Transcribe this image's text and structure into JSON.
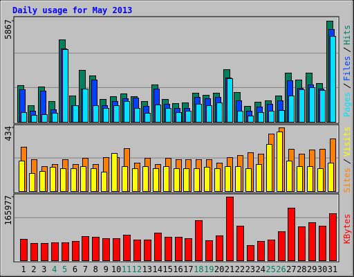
{
  "chart_data": {
    "type": "bar",
    "title": "Daily usage for May 2013",
    "categories": [
      "1",
      "2",
      "3",
      "4",
      "5",
      "6",
      "7",
      "8",
      "9",
      "10",
      "11",
      "12",
      "13",
      "14",
      "15",
      "16",
      "17",
      "18",
      "19",
      "20",
      "21",
      "22",
      "23",
      "24",
      "25",
      "26",
      "27",
      "28",
      "29",
      "30",
      "31"
    ],
    "category_colors": [
      "#000000",
      "#000000",
      "#000000",
      "#00805c",
      "#00805c",
      "#000000",
      "#000000",
      "#000000",
      "#000000",
      "#000000",
      "#00805c",
      "#00805c",
      "#000000",
      "#000000",
      "#000000",
      "#000000",
      "#000000",
      "#00805c",
      "#00805c",
      "#000000",
      "#000000",
      "#000000",
      "#000000",
      "#000000",
      "#00805c",
      "#00805c",
      "#000000",
      "#000000",
      "#000000",
      "#000000",
      "#000000"
    ],
    "panels": [
      {
        "ylim": [
          0,
          5867
        ],
        "yticks": [
          5867
        ],
        "series": [
          {
            "name": "Pages",
            "color": "#00e0ff",
            "values": [
              563,
              402,
              442,
              522,
              4220,
              964,
              1929,
              964,
              804,
              964,
              1206,
              804,
              522,
              1005,
              804,
              563,
              643,
              1045,
              964,
              1125,
              2532,
              643,
              362,
              563,
              643,
              683,
              1527,
              1889,
              2009,
              1849,
              4983
            ]
          },
          {
            "name": "Files",
            "color": "#0040ff",
            "values": [
              1889,
              643,
              1808,
              723,
              4260,
              964,
              1929,
              2451,
              964,
              1206,
              1366,
              1406,
              924,
              1929,
              1045,
              804,
              804,
              1447,
              1366,
              1447,
              2572,
              1246,
              643,
              884,
              1045,
              1246,
              2411,
              1969,
              2170,
              1929,
              5385
            ]
          },
          {
            "name": "Hits",
            "color": "#00805c",
            "values": [
              2130,
              964,
              2049,
              1206,
              4782,
              1527,
              3014,
              2692,
              1326,
              1487,
              1648,
              1487,
              1206,
              2170,
              1326,
              1085,
              1125,
              1688,
              1567,
              1688,
              3054,
              1728,
              924,
              1165,
              1246,
              1527,
              2853,
              2451,
              2853,
              2250,
              5867
            ]
          }
        ]
      },
      {
        "ylim": [
          0,
          434
        ],
        "yticks": [
          434
        ],
        "series": [
          {
            "name": "Sites",
            "color": "#ff8000",
            "values": [
              302,
              217,
              170,
              184,
              217,
              184,
              226,
              184,
              231,
              231,
              292,
              193,
              226,
              184,
              226,
              217,
              217,
              217,
              217,
              193,
              231,
              245,
              264,
              255,
              392,
              434,
              288,
              255,
              283,
              288,
              359
            ]
          },
          {
            "name": "Visits",
            "color": "#ffff00",
            "values": [
              208,
              123,
              137,
              165,
              156,
              156,
              170,
              156,
              132,
              259,
              170,
              156,
              170,
              156,
              170,
              156,
              156,
              156,
              165,
              156,
              170,
              170,
              156,
              184,
              321,
              406,
              208,
              170,
              170,
              156,
              193
            ]
          }
        ]
      },
      {
        "ylim": [
          0,
          165977
        ],
        "yticks": [
          165977
        ],
        "series": [
          {
            "name": "KBytes",
            "color": "#ff0000",
            "values": [
              55927,
              45102,
              45102,
              46907,
              46907,
              50515,
              63144,
              61340,
              57731,
              57731,
              66752,
              54123,
              54123,
              72164,
              61340,
              61340,
              57731,
              104638,
              52319,
              64948,
              165977,
              90205,
              39690,
              50515,
              54123,
              75772,
              137112,
              88401,
              99226,
              90205,
              122678
            ]
          }
        ]
      }
    ]
  }
}
